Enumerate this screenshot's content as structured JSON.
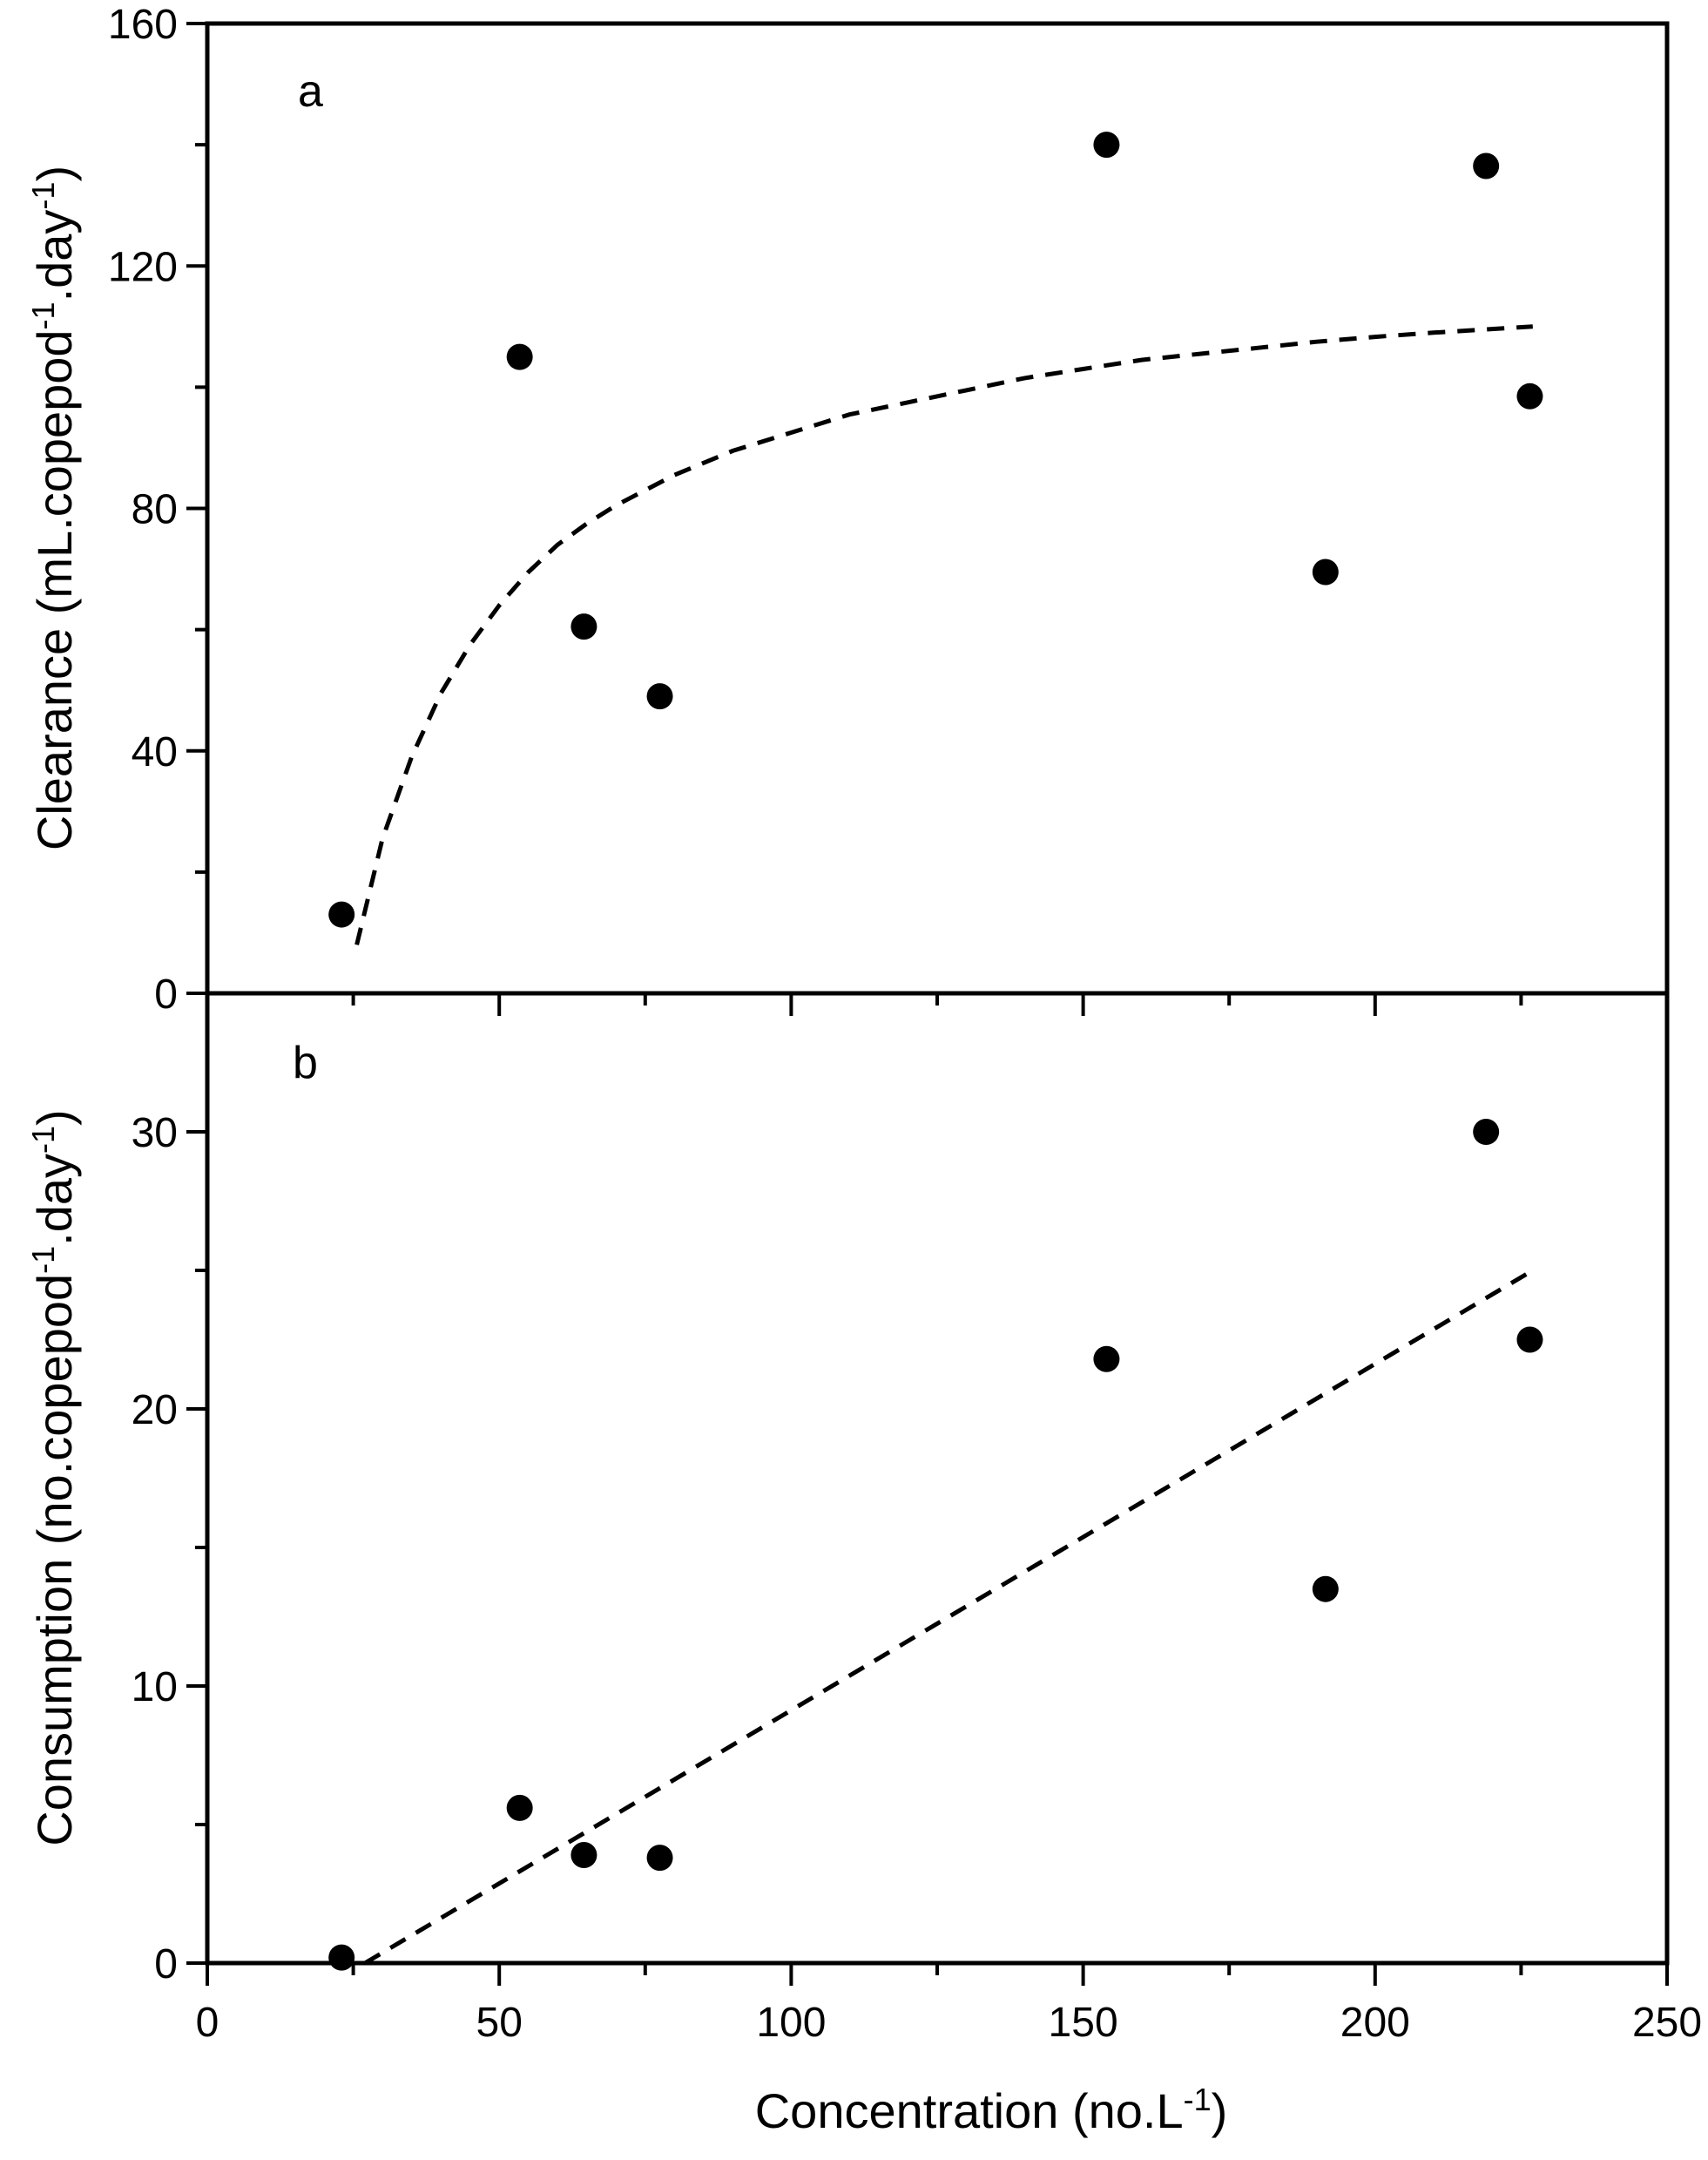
{
  "chart_data": [
    {
      "type": "scatter",
      "panel_label": "a",
      "ylabel": {
        "prefix": "Clearance (mL.copepod",
        "sup1": "-1",
        "middle": ".day",
        "sup2": "-1",
        "suffix": ")"
      },
      "xlim": [
        0,
        250
      ],
      "ylim": [
        0,
        160
      ],
      "yticks": [
        0,
        40,
        80,
        120,
        160
      ],
      "ytick_labels": [
        "0",
        "40",
        "80",
        "120",
        "160"
      ],
      "yminor": [
        20,
        60,
        100,
        140
      ],
      "series": [
        {
          "points": [
            {
              "x": 23,
              "y": 13
            },
            {
              "x": 53.5,
              "y": 105
            },
            {
              "x": 64.5,
              "y": 60.5
            },
            {
              "x": 77.5,
              "y": 49
            },
            {
              "x": 154,
              "y": 140
            },
            {
              "x": 191.5,
              "y": 69.5
            },
            {
              "x": 219,
              "y": 136.5
            },
            {
              "x": 226.5,
              "y": 98.5
            }
          ]
        }
      ],
      "fit": {
        "style": "dashed",
        "points": [
          {
            "x": 25.6,
            "y": 8
          },
          {
            "x": 30,
            "y": 25.5
          },
          {
            "x": 35,
            "y": 39
          },
          {
            "x": 40,
            "y": 49.5
          },
          {
            "x": 45,
            "y": 57.5
          },
          {
            "x": 50,
            "y": 64
          },
          {
            "x": 55,
            "y": 69.5
          },
          {
            "x": 60,
            "y": 74
          },
          {
            "x": 65,
            "y": 77.5
          },
          {
            "x": 70,
            "y": 80.5
          },
          {
            "x": 80,
            "y": 85.5
          },
          {
            "x": 90,
            "y": 89.5
          },
          {
            "x": 100,
            "y": 92.5
          },
          {
            "x": 110,
            "y": 95.5
          },
          {
            "x": 120,
            "y": 97.5
          },
          {
            "x": 130,
            "y": 99.5
          },
          {
            "x": 140,
            "y": 101.5
          },
          {
            "x": 150,
            "y": 103
          },
          {
            "x": 160,
            "y": 104.5
          },
          {
            "x": 170,
            "y": 105.5
          },
          {
            "x": 180,
            "y": 106.5
          },
          {
            "x": 190,
            "y": 107.5
          },
          {
            "x": 200,
            "y": 108.3
          },
          {
            "x": 210,
            "y": 109
          },
          {
            "x": 220,
            "y": 109.6
          },
          {
            "x": 227,
            "y": 110
          }
        ]
      }
    },
    {
      "type": "scatter",
      "panel_label": "b",
      "ylabel": {
        "prefix": "Consumption (no.copepod",
        "sup1": "-1",
        "middle": ".day",
        "sup2": "-1",
        "suffix": ")"
      },
      "xlabel": {
        "prefix": "Concentration (no.L",
        "sup1": "-1",
        "suffix": ")"
      },
      "xlim": [
        0,
        250
      ],
      "ylim": [
        0,
        35
      ],
      "xticks": [
        0,
        50,
        100,
        150,
        200,
        250
      ],
      "xtick_labels": [
        "0",
        "50",
        "100",
        "150",
        "200",
        "250"
      ],
      "yticks": [
        0,
        10,
        20,
        30
      ],
      "ytick_labels": [
        "0",
        "10",
        "20",
        "30"
      ],
      "yminor": [
        5,
        15,
        25
      ],
      "series": [
        {
          "points": [
            {
              "x": 23,
              "y": 0.2
            },
            {
              "x": 53.5,
              "y": 5.6
            },
            {
              "x": 64.5,
              "y": 3.9
            },
            {
              "x": 77.5,
              "y": 3.8
            },
            {
              "x": 154,
              "y": 21.8
            },
            {
              "x": 191.5,
              "y": 13.5
            },
            {
              "x": 219,
              "y": 30
            },
            {
              "x": 226.5,
              "y": 22.5
            }
          ]
        }
      ],
      "fit": {
        "style": "dashed",
        "points": [
          {
            "x": 27,
            "y": 0
          },
          {
            "x": 227,
            "y": 25
          }
        ]
      }
    }
  ]
}
